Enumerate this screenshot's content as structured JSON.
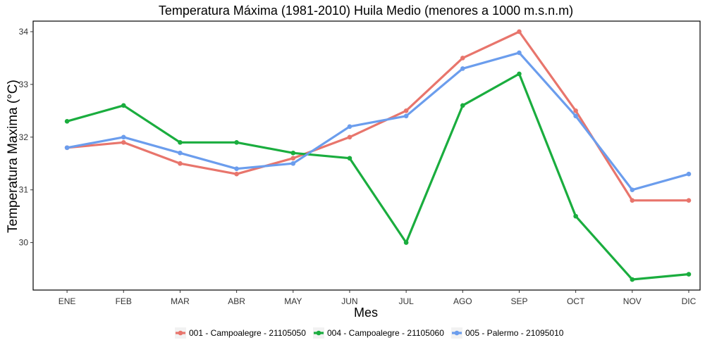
{
  "chart_data": {
    "type": "line",
    "title": "Temperatura Máxima (1981-2010) Huila Medio (menores a 1000 m.s.n.m)",
    "xlabel": "Mes",
    "ylabel": "Temperatura Maxima (°C)",
    "categories": [
      "ENE",
      "FEB",
      "MAR",
      "ABR",
      "MAY",
      "JUN",
      "JUL",
      "AGO",
      "SEP",
      "OCT",
      "NOV",
      "DIC"
    ],
    "y_ticks": [
      30,
      31,
      32,
      33,
      34
    ],
    "ylim": [
      29.1,
      34.2
    ],
    "grid": false,
    "legend_position": "bottom",
    "series": [
      {
        "name": "001 - Campoalegre - 21105050",
        "color": "#e8756c",
        "values": [
          31.8,
          31.9,
          31.5,
          31.3,
          31.6,
          32.0,
          32.5,
          33.5,
          34.0,
          32.5,
          30.8,
          30.8
        ]
      },
      {
        "name": "004 - Campoalegre - 21105060",
        "color": "#1aad3e",
        "values": [
          32.3,
          32.6,
          31.9,
          31.9,
          31.7,
          31.6,
          30.0,
          32.6,
          33.2,
          30.5,
          29.3,
          29.4
        ]
      },
      {
        "name": "005 - Palermo - 21095010",
        "color": "#6b9ded",
        "values": [
          31.8,
          32.0,
          31.7,
          31.4,
          31.5,
          32.2,
          32.4,
          33.3,
          33.6,
          32.4,
          31.0,
          31.3
        ]
      }
    ]
  }
}
